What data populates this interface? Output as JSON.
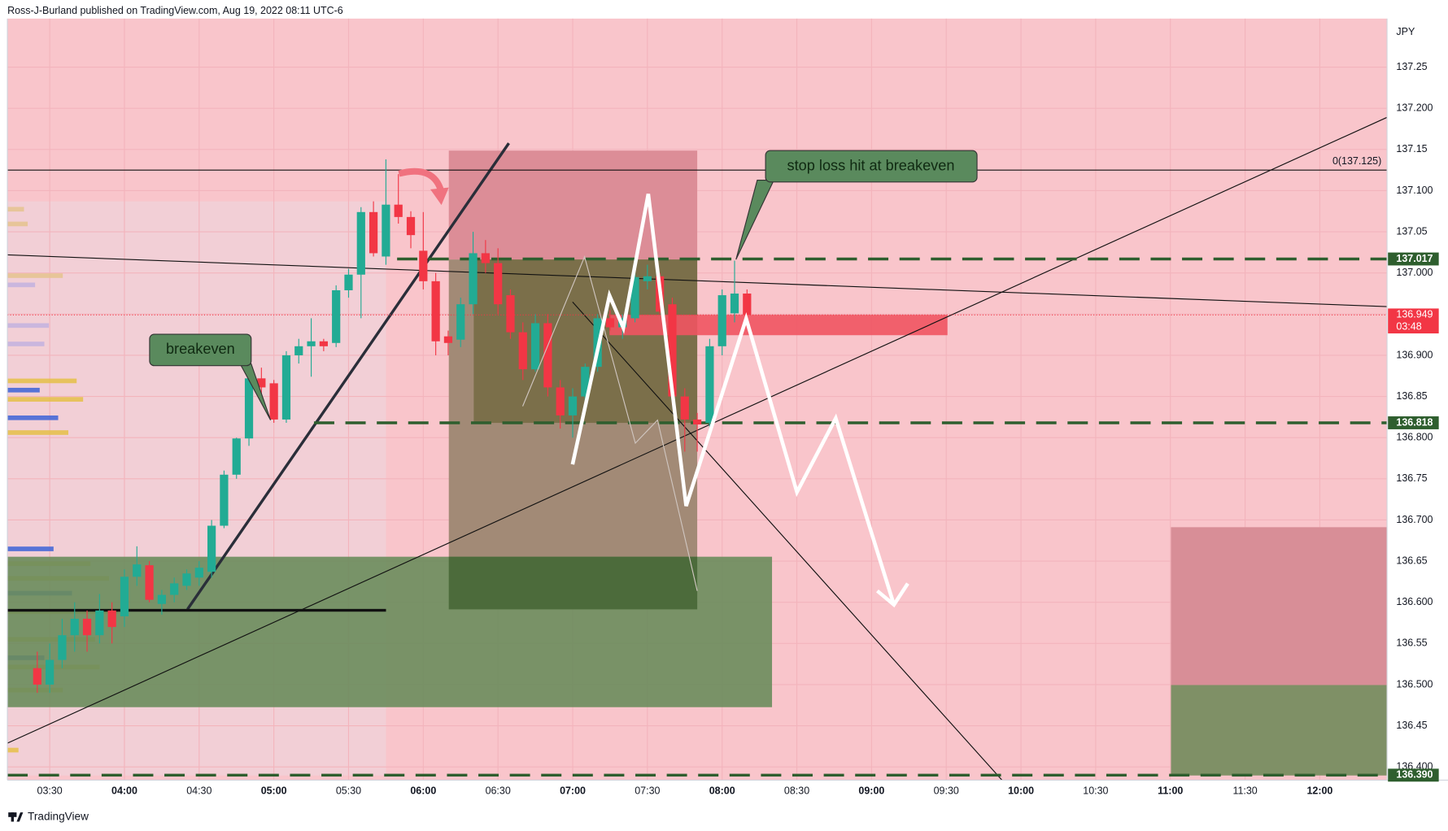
{
  "chart_data": {
    "type": "candlestick",
    "header": "Ross-J-Burland published on TradingView.com, Aug 19, 2022 08:11 UTC-6",
    "footer": "TradingView",
    "currency": "JPY",
    "up_color": "#22ab94",
    "down_color": "#f23645",
    "x": [
      "03:25",
      "03:30",
      "03:35",
      "03:40",
      "03:45",
      "03:50",
      "03:55",
      "04:00",
      "04:05",
      "04:10",
      "04:15",
      "04:20",
      "04:25",
      "04:30",
      "04:35",
      "04:40",
      "04:45",
      "04:50",
      "04:55",
      "05:00",
      "05:05",
      "05:10",
      "05:15",
      "05:20",
      "05:25",
      "05:30",
      "05:35",
      "05:40",
      "05:45",
      "05:50",
      "05:55",
      "06:00",
      "06:05",
      "06:10",
      "06:15",
      "06:20",
      "06:25",
      "06:30",
      "06:35",
      "06:40",
      "06:45",
      "06:50",
      "06:55",
      "07:00",
      "07:05",
      "07:10",
      "07:15",
      "07:20",
      "07:25",
      "07:30",
      "07:35",
      "07:40",
      "07:45",
      "07:50",
      "07:55",
      "08:00",
      "08:05",
      "08:10"
    ],
    "open": [
      136.52,
      136.5,
      136.53,
      136.56,
      136.58,
      136.56,
      136.59,
      136.583,
      136.631,
      136.645,
      136.598,
      136.609,
      136.62,
      136.63,
      136.637,
      136.693,
      136.755,
      136.799,
      136.872,
      136.866,
      136.822,
      136.9,
      136.911,
      136.917,
      136.915,
      136.979,
      136.998,
      137.074,
      137.02,
      137.083,
      137.068,
      137.027,
      136.99,
      136.923,
      136.919,
      136.962,
      137.024,
      137.012,
      136.973,
      136.928,
      136.883,
      136.939,
      136.861,
      136.827,
      136.85,
      136.886,
      136.945,
      136.934,
      136.945,
      136.99,
      136.996,
      136.962,
      136.85,
      136.822,
      136.818,
      136.911,
      136.951,
      136.975
    ],
    "high": [
      136.54,
      136.55,
      136.58,
      136.6,
      136.59,
      136.61,
      136.6,
      136.64,
      136.668,
      136.65,
      136.615,
      136.63,
      136.64,
      136.65,
      136.7,
      136.76,
      136.8,
      136.88,
      136.885,
      136.87,
      136.905,
      136.92,
      136.945,
      136.92,
      136.985,
      137.005,
      137.08,
      137.087,
      137.138,
      137.12,
      137.075,
      137.074,
      137.0,
      136.93,
      136.97,
      137.05,
      137.04,
      137.03,
      136.98,
      136.94,
      136.95,
      136.95,
      136.87,
      136.86,
      136.89,
      136.95,
      136.955,
      136.95,
      137.0,
      137.01,
      137.0,
      136.97,
      136.86,
      136.83,
      136.92,
      136.98,
      137.015,
      136.98
    ],
    "low": [
      136.49,
      136.49,
      136.52,
      136.54,
      136.54,
      136.55,
      136.55,
      136.57,
      136.62,
      136.6,
      136.585,
      136.6,
      136.615,
      136.62,
      136.63,
      136.69,
      136.75,
      136.79,
      136.85,
      136.818,
      136.818,
      136.89,
      136.874,
      136.905,
      136.91,
      136.97,
      136.945,
      137.02,
      137.01,
      137.06,
      137.03,
      136.98,
      136.9,
      136.9,
      136.91,
      136.95,
      137.0,
      136.95,
      136.92,
      136.87,
      136.88,
      136.85,
      136.811,
      136.8,
      136.84,
      136.88,
      136.93,
      136.92,
      136.94,
      136.98,
      136.95,
      136.84,
      136.783,
      136.783,
      136.81,
      136.9,
      136.94,
      136.945
    ],
    "close": [
      136.5,
      136.53,
      136.56,
      136.58,
      136.56,
      136.59,
      136.57,
      136.631,
      136.646,
      136.603,
      136.609,
      136.623,
      136.635,
      136.642,
      136.693,
      136.755,
      136.799,
      136.872,
      136.861,
      136.822,
      136.9,
      136.911,
      136.917,
      136.911,
      136.979,
      136.998,
      137.074,
      137.024,
      137.083,
      137.068,
      137.046,
      136.99,
      136.917,
      136.915,
      136.962,
      137.024,
      137.012,
      136.962,
      136.928,
      136.883,
      136.939,
      136.861,
      136.827,
      136.85,
      136.886,
      136.945,
      136.934,
      136.945,
      136.995,
      136.996,
      136.953,
      136.85,
      136.822,
      136.816,
      136.911,
      136.973,
      136.975,
      136.949
    ],
    "xlim": [
      "03:13",
      "12:27"
    ],
    "xticks": [
      "03:30",
      "04:00",
      "04:30",
      "05:00",
      "05:30",
      "06:00",
      "06:30",
      "07:00",
      "07:30",
      "08:00",
      "08:30",
      "09:00",
      "09:30",
      "10:00",
      "10:30",
      "11:00",
      "11:30",
      "12:00"
    ],
    "ylim": [
      136.384,
      137.309
    ],
    "yticks": [
      {
        "value": 136.4,
        "label": "136.400"
      },
      136.45,
      {
        "value": 136.5,
        "label": "136.500"
      },
      136.55,
      {
        "value": 136.6,
        "label": "136.600"
      },
      136.65,
      {
        "value": 136.7,
        "label": "136.700"
      },
      136.75,
      {
        "value": 136.8,
        "label": "136.800"
      },
      136.85,
      {
        "value": 136.9,
        "label": "136.900"
      },
      136.95,
      {
        "value": 137.0,
        "label": "137.000"
      },
      137.05,
      {
        "value": 137.1,
        "label": "137.100"
      },
      137.15,
      {
        "value": 137.2,
        "label": "137.200"
      },
      137.25
    ],
    "grid": true,
    "price_levels": [
      137.017,
      136.818,
      {
        "value": 136.39,
        "label": "136.390"
      }
    ],
    "level_color": "#2e5e2e",
    "last_price": 136.949,
    "countdown": "03:48",
    "fib_level": 137.125,
    "fib_label": "0(137.125)",
    "annotations": [
      "breakeven",
      "stop loss hit at breakeven"
    ]
  }
}
